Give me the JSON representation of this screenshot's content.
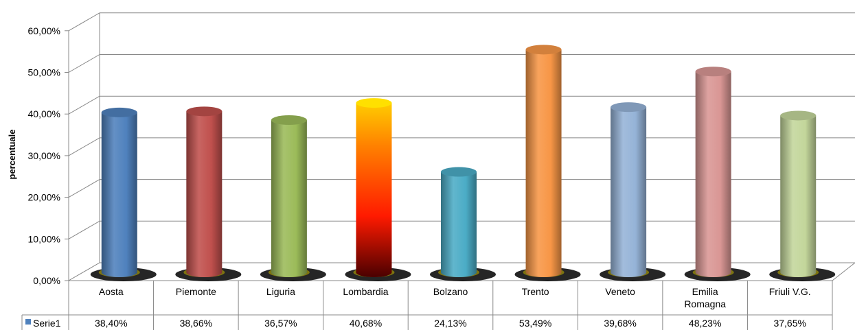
{
  "chart_data": {
    "type": "bar",
    "style": "3d-cylinder",
    "ylabel": "percentuale",
    "ylim": [
      0,
      60
    ],
    "yticks": [
      "0,00%",
      "10,00%",
      "20,00%",
      "30,00%",
      "40,00%",
      "50,00%",
      "60,00%"
    ],
    "grid": true,
    "legend": "data-table",
    "categories": [
      "Aosta",
      "Piemonte",
      "Liguria",
      "Lombardia",
      "Bolzano",
      "Trento",
      "Veneto",
      "Emilia Romagna",
      "Friuli V.G."
    ],
    "series": [
      {
        "name": "Serie1",
        "values": [
          38.4,
          38.66,
          36.57,
          40.68,
          24.13,
          53.49,
          39.68,
          48.23,
          37.65
        ],
        "labels": [
          "38,40%",
          "38,66%",
          "36,57%",
          "40,68%",
          "24,13%",
          "53,49%",
          "39,68%",
          "48,23%",
          "37,65%"
        ],
        "legend_color": "#4f81bd"
      }
    ],
    "bar_colors": [
      "#4f81bd",
      "#c0504d",
      "#9bbb59",
      "#ff6600",
      "#4bacc6",
      "#f79646",
      "#95b3d7",
      "#d99694",
      "#c3d69b"
    ]
  }
}
